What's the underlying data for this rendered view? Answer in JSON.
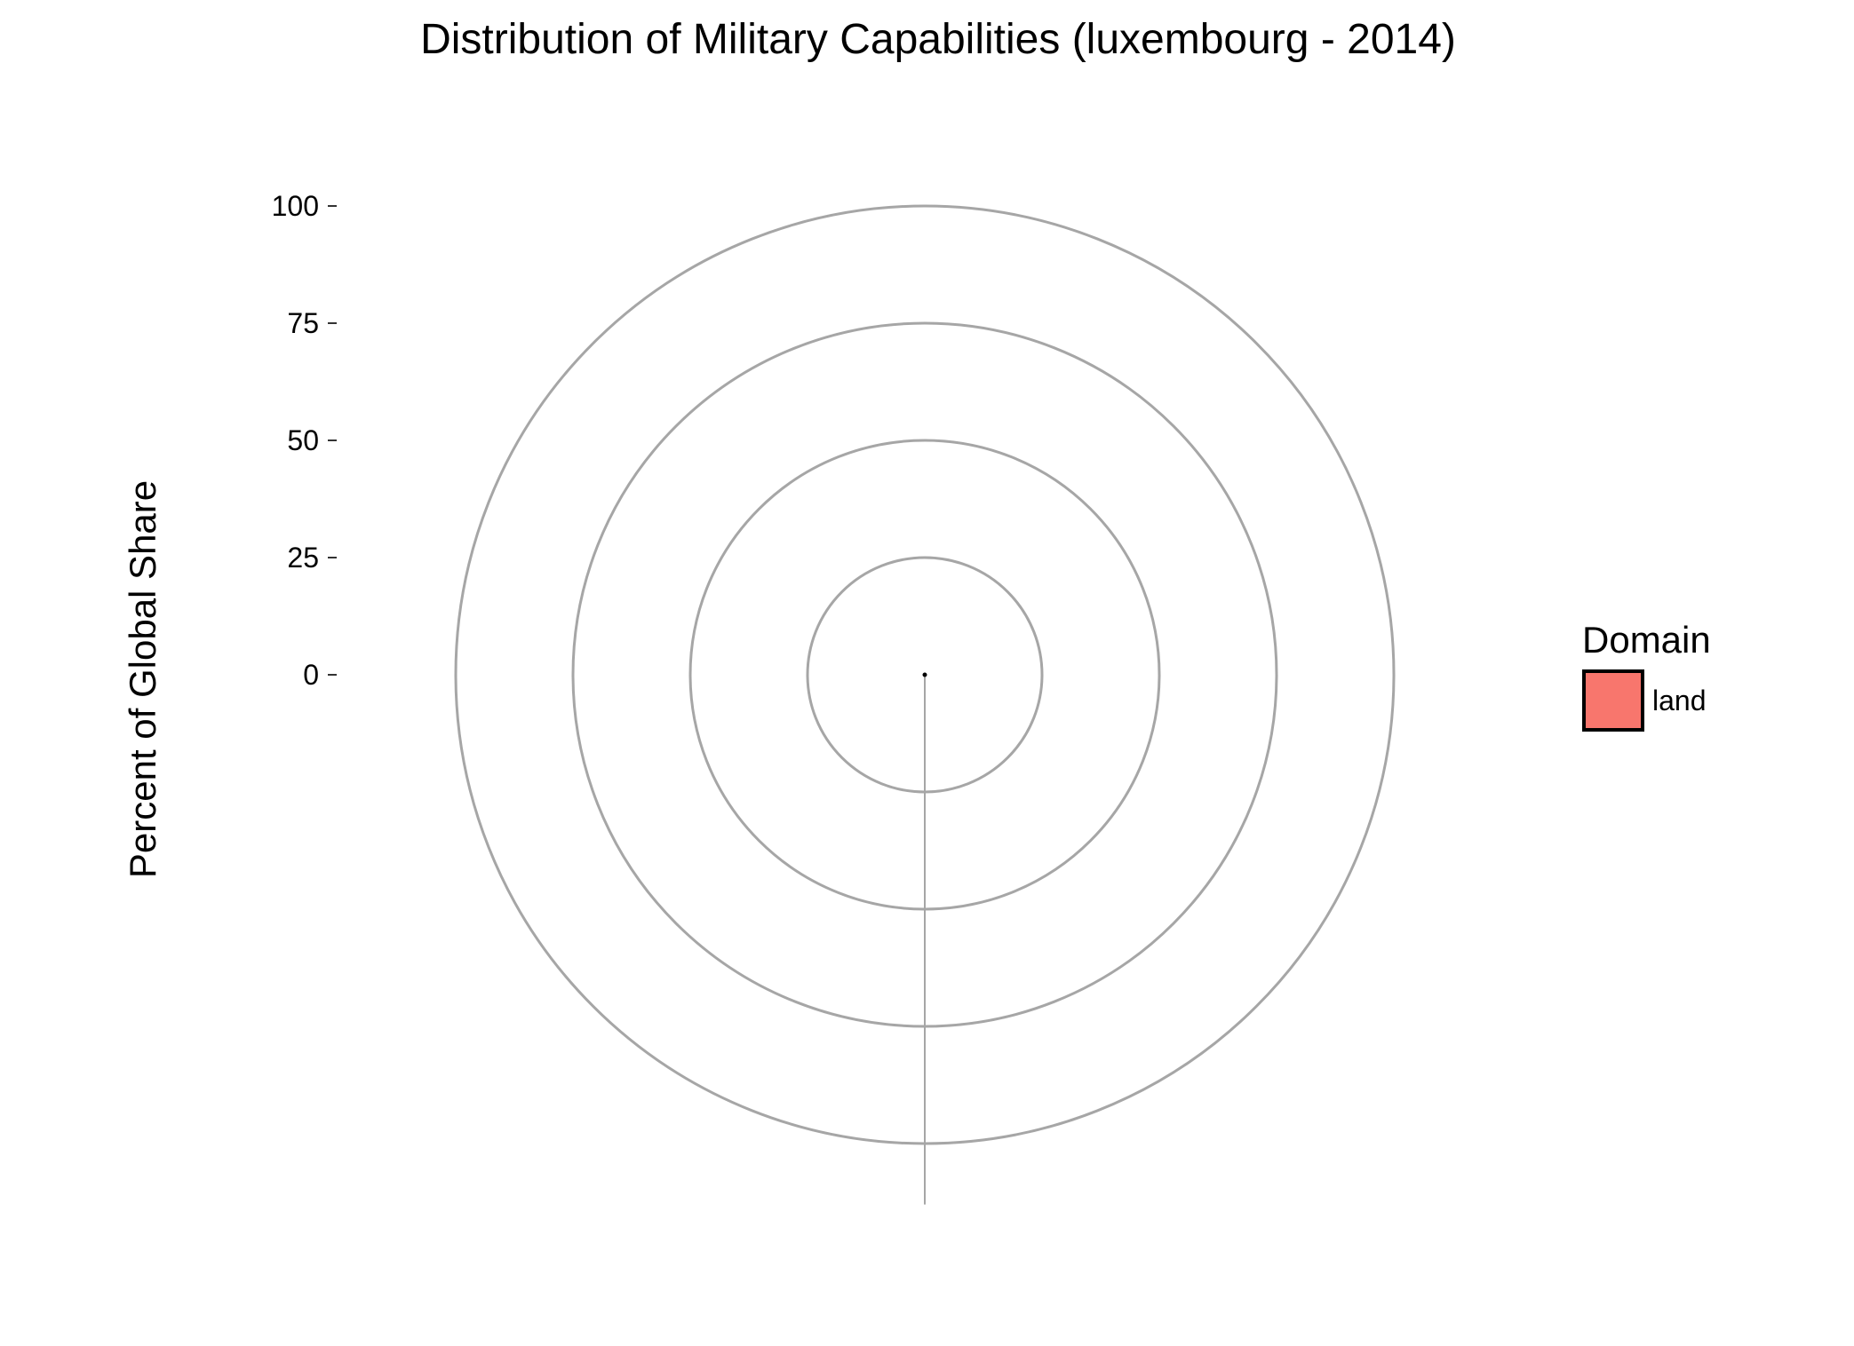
{
  "chart_data": {
    "type": "pie",
    "coord": "polar",
    "title": "Distribution of Military Capabilities (luxembourg - 2014)",
    "xlabel": "",
    "ylabel": "Percent of Global Share",
    "ylim": [
      0,
      100
    ],
    "y_ticks": [
      "0",
      "25",
      "50",
      "75",
      "100"
    ],
    "y_tick_values": [
      0,
      25,
      50,
      75,
      100
    ],
    "grid": true,
    "legend": {
      "title": "Domain",
      "placement": "right",
      "entries": [
        {
          "label": "land",
          "color": "#F8766D"
        }
      ]
    },
    "series": [
      {
        "category": "land",
        "value": 0
      }
    ],
    "colors": {
      "grid": "#A6A6A6",
      "fill": "#F8766D",
      "outline": "#000000"
    }
  }
}
